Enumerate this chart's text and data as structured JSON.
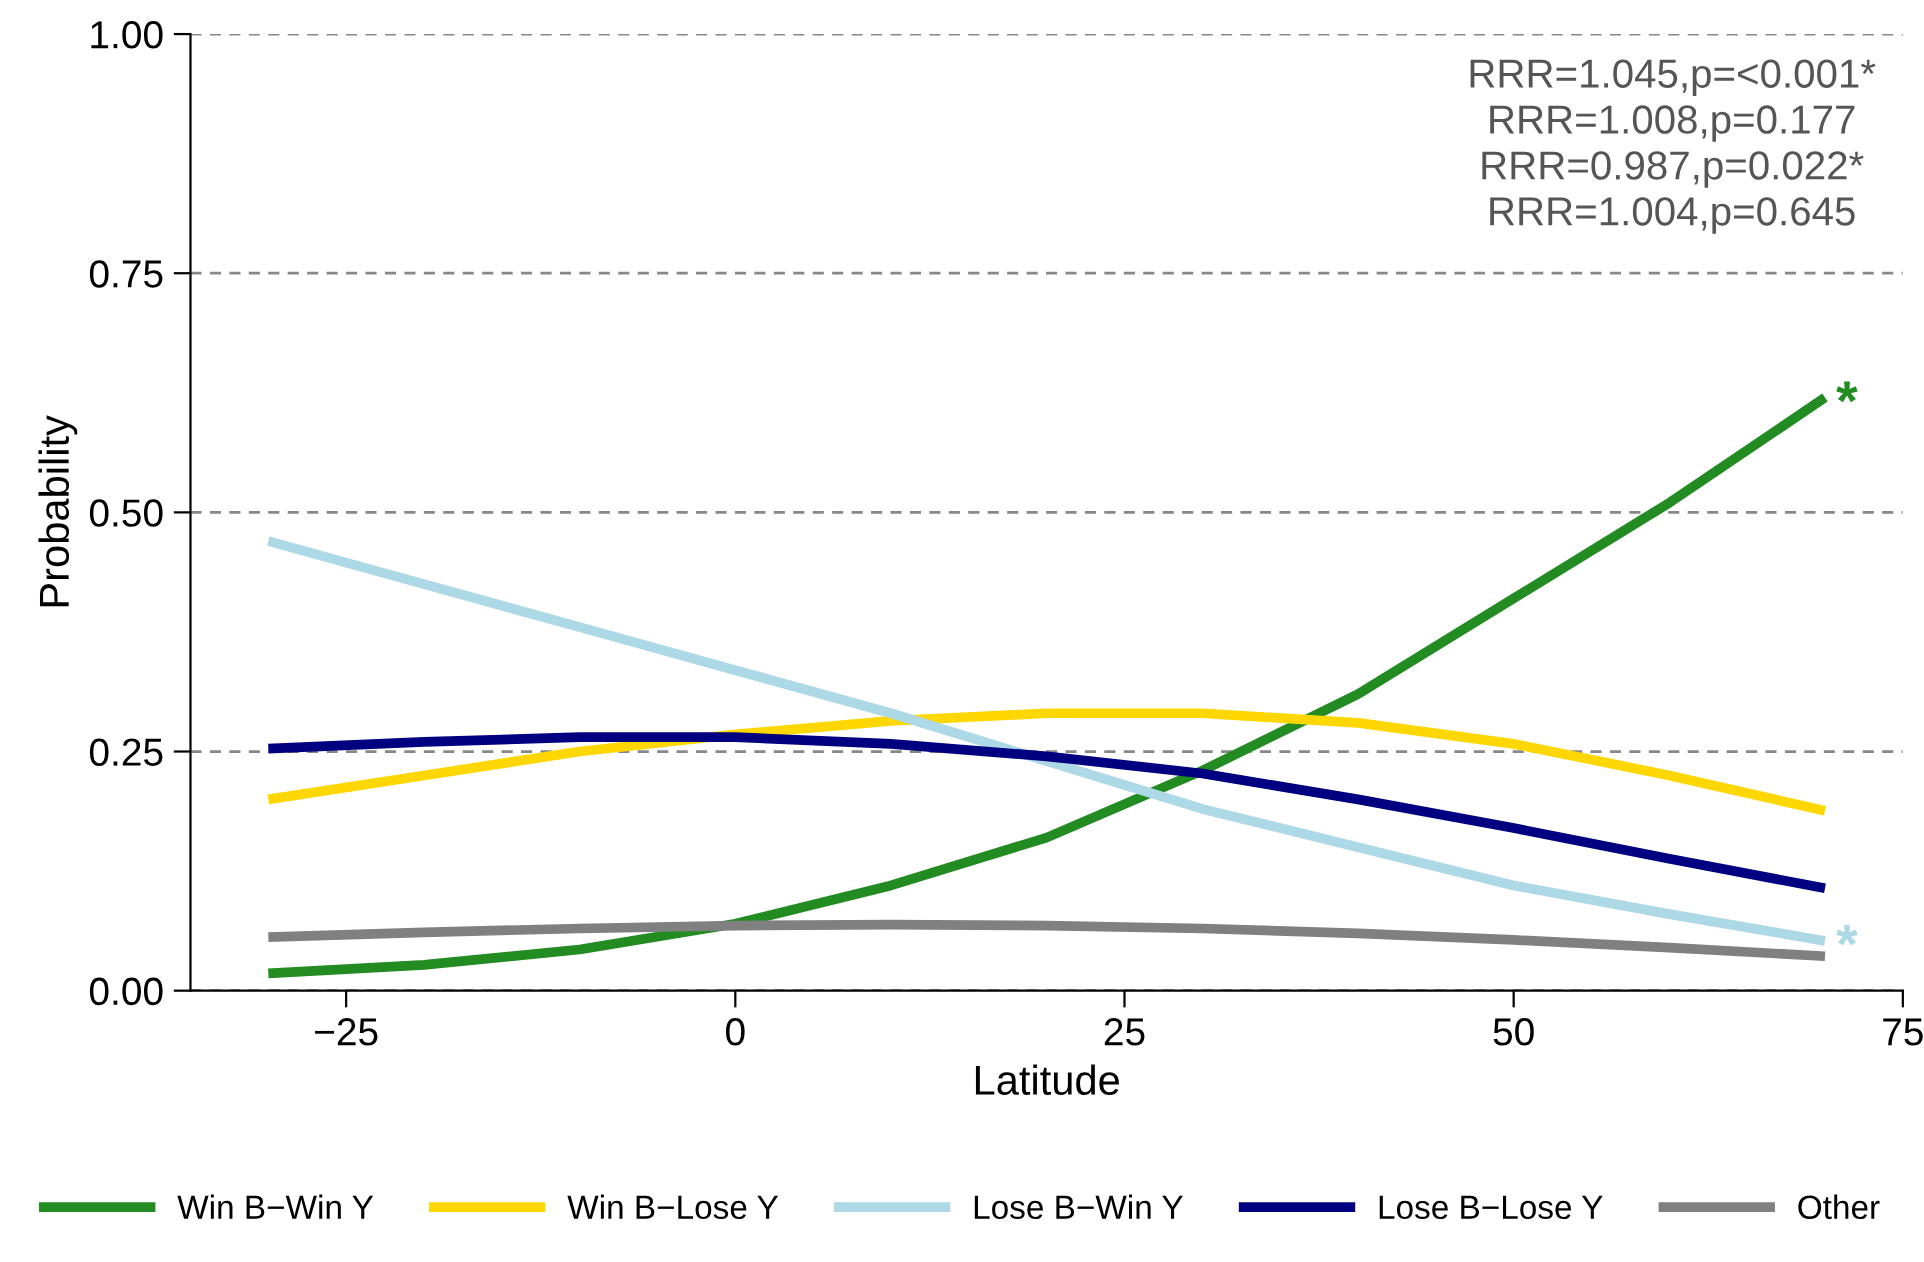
{
  "chart_data": {
    "type": "line",
    "xlabel": "Latitude",
    "ylabel": "Probability",
    "x": [
      -30,
      -20,
      -10,
      0,
      10,
      20,
      30,
      40,
      50,
      60,
      70
    ],
    "series": [
      {
        "name": "Win B−Win Y",
        "color": "#228b22",
        "values": [
          0.018,
          0.027,
          0.043,
          0.07,
          0.11,
          0.16,
          0.23,
          0.31,
          0.41,
          0.51,
          0.62
        ]
      },
      {
        "name": "Win B−Lose Y",
        "color": "#ffd700",
        "values": [
          0.2,
          0.225,
          0.25,
          0.268,
          0.282,
          0.29,
          0.29,
          0.28,
          0.258,
          0.225,
          0.188
        ]
      },
      {
        "name": "Lose B−Win Y",
        "color": "#add8e6",
        "values": [
          0.47,
          0.425,
          0.38,
          0.335,
          0.29,
          0.24,
          0.19,
          0.15,
          0.11,
          0.08,
          0.052
        ]
      },
      {
        "name": "Lose B−Lose Y",
        "color": "#000080",
        "values": [
          0.253,
          0.26,
          0.265,
          0.265,
          0.258,
          0.245,
          0.227,
          0.2,
          0.17,
          0.138,
          0.107
        ]
      },
      {
        "name": "Other",
        "color": "#808080",
        "values": [
          0.056,
          0.061,
          0.065,
          0.068,
          0.069,
          0.068,
          0.065,
          0.06,
          0.053,
          0.045,
          0.036
        ]
      }
    ],
    "xlim": [
      -35,
      75
    ],
    "xticks": [
      {
        "value": -25,
        "label": "−25"
      },
      0,
      25,
      50,
      75
    ],
    "ylim": [
      0,
      1
    ],
    "yticks": [
      {
        "value": 0,
        "label": "0.00"
      },
      {
        "value": 0.25,
        "label": "0.25"
      },
      {
        "value": 0.5,
        "label": "0.50"
      },
      {
        "value": 0.75,
        "label": "0.75"
      },
      {
        "value": 1,
        "label": "1.00"
      }
    ],
    "grid": "y",
    "legend": "bottom",
    "marker": "none",
    "line_style": "solid",
    "annotations": [
      {
        "text": "*",
        "x": 70,
        "y": 0.62
      },
      {
        "text": "*",
        "x": 70,
        "y": 0.052
      },
      "RRR=1.045,p=<0.001*",
      "RRR=1.008,p=0.177",
      "RRR=0.987,p=0.022*",
      "RRR=1.004,p=0.645"
    ]
  }
}
